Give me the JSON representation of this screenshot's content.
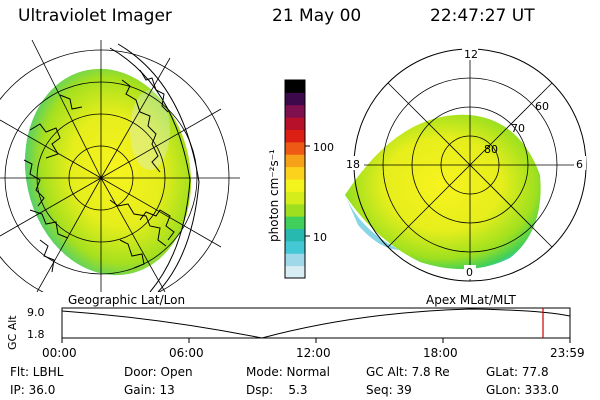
{
  "header": {
    "instrument": "Ultraviolet Imager",
    "date": "21 May 00",
    "time": "22:47:27 UT"
  },
  "panels": {
    "left_label": "Geographic Lat/Lon",
    "right_label": "Apex MLat/MLT"
  },
  "colorbar": {
    "unit_label": "photon cm⁻²s⁻¹",
    "ticks": [
      {
        "label": "100",
        "value": 100
      },
      {
        "label": "10",
        "value": 10
      }
    ],
    "colors_bottom_to_top": [
      "#d8ecf4",
      "#9fd8e8",
      "#45c8d6",
      "#27b8b0",
      "#3fcf5a",
      "#9ee01f",
      "#d6ed1c",
      "#f3f31e",
      "#fcd21c",
      "#f7a11a",
      "#ee5a15",
      "#db1f13",
      "#b6102a",
      "#7e1050",
      "#3c0a4a",
      "#000000"
    ]
  },
  "polar_labels": {
    "mlt_top": "12",
    "mlt_left": "18",
    "mlt_right": "6",
    "mlt_bottom": "0",
    "mlat_60": "60",
    "mlat_70": "70",
    "mlat_80": "80"
  },
  "timeline": {
    "ylabel": "GC Alt",
    "ymax": "9.0",
    "ymin": "1.8",
    "ticks": [
      "00:00",
      "06:00",
      "12:00",
      "18:00",
      "23:59"
    ],
    "current_marker_color": "#cc0000"
  },
  "info": {
    "row1": [
      {
        "label": "Flt: LBHL"
      },
      {
        "label": "Door: Open"
      },
      {
        "label": "Mode: Normal"
      },
      {
        "label": "GC Alt: 7.8 Re"
      },
      {
        "label": "GLat: 77.8"
      }
    ],
    "row2": [
      {
        "label": "IP: 36.0"
      },
      {
        "label": "Gain: 13"
      },
      {
        "label": "Dsp:    5.3"
      },
      {
        "label": "Seq: 39"
      },
      {
        "label": "GLon: 333.0"
      }
    ]
  }
}
